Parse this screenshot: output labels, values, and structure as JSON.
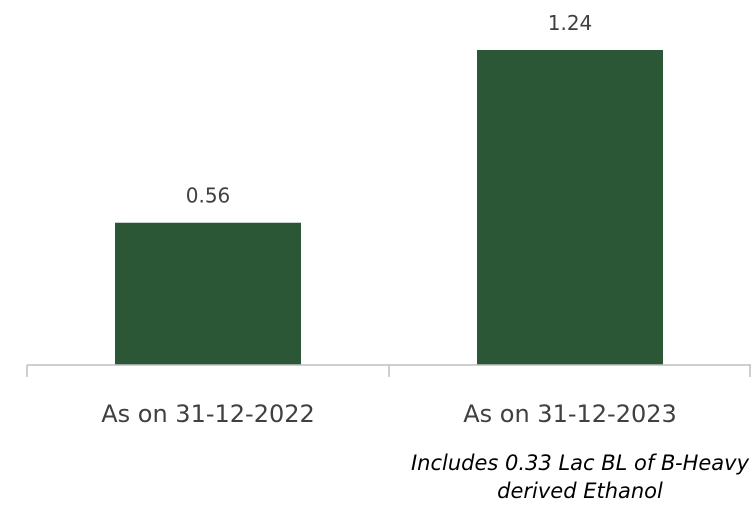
{
  "chart_data": {
    "type": "bar",
    "categories": [
      "As on 31-12-2022",
      "As on 31-12-2023"
    ],
    "values": [
      0.56,
      1.24
    ],
    "value_labels": [
      "0.56",
      "1.24"
    ],
    "title": "",
    "xlabel": "",
    "ylabel": "",
    "ylim": [
      0,
      1.24
    ],
    "grid": false,
    "legend": "none",
    "annotations": [
      {
        "category": "As on 31-12-2023",
        "text": "Includes 0.33 Lac BL of B-Heavy derived Ethanol"
      }
    ],
    "colors": {
      "bar": "#2b5737",
      "axis": "#bfbfbf"
    }
  }
}
